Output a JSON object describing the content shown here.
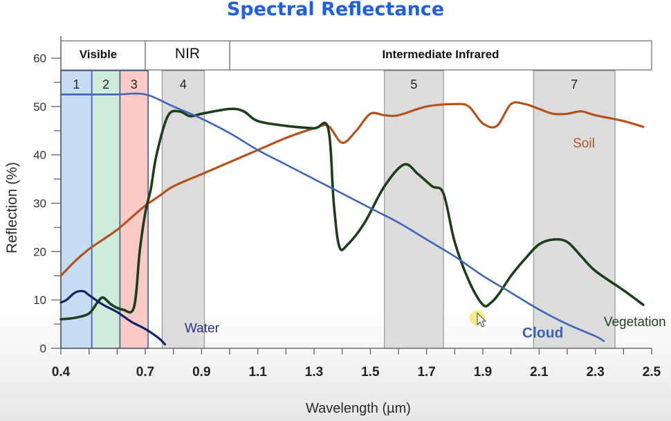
{
  "chart_data": {
    "type": "line",
    "title": "Spectral Reflectance",
    "xlabel": "Wavelength (µm)",
    "ylabel": "Reflection (%)",
    "xlim": [
      0.4,
      2.5
    ],
    "ylim": [
      0,
      60
    ],
    "x_ticks": [
      "0.4",
      "0.7",
      "0.9",
      "1.1",
      "1.3",
      "1.5",
      "1.7",
      "1.9",
      "2.1",
      "2.3",
      "2.5"
    ],
    "y_ticks": [
      "0",
      "10",
      "20",
      "30",
      "40",
      "50",
      "60"
    ],
    "regions": [
      {
        "label": "Visible",
        "x0": 0.4,
        "x1": 0.7
      },
      {
        "label": "NIR",
        "x0": 0.7,
        "x1": 1.0
      },
      {
        "label": "Intermediate Infrared",
        "x0": 1.0,
        "x1": 2.5
      }
    ],
    "bands": [
      {
        "label": "1",
        "x0": 0.4,
        "x1": 0.51,
        "color": "#c6dcf2"
      },
      {
        "label": "2",
        "x0": 0.51,
        "x1": 0.61,
        "color": "#cfebdc"
      },
      {
        "label": "3",
        "x0": 0.61,
        "x1": 0.71,
        "color": "#f9cac6"
      },
      {
        "label": "4",
        "x0": 0.76,
        "x1": 0.91,
        "color": "#dcdcdc"
      },
      {
        "label": "5",
        "x0": 1.55,
        "x1": 1.76,
        "color": "#dcdcdc"
      },
      {
        "label": "7",
        "x0": 2.08,
        "x1": 2.37,
        "color": "#dcdcdc"
      }
    ],
    "series": [
      {
        "name": "Soil",
        "color": "#b5521c",
        "x": [
          0.4,
          0.45,
          0.5,
          0.55,
          0.6,
          0.65,
          0.7,
          0.75,
          0.8,
          0.9,
          1.0,
          1.1,
          1.2,
          1.3,
          1.35,
          1.4,
          1.45,
          1.5,
          1.55,
          1.6,
          1.7,
          1.8,
          1.85,
          1.9,
          1.95,
          2.0,
          2.05,
          2.1,
          2.15,
          2.2,
          2.25,
          2.3,
          2.4,
          2.47
        ],
        "y": [
          15,
          18,
          20.5,
          22.5,
          24.5,
          27,
          29.5,
          31.5,
          33.5,
          36,
          38.5,
          41,
          43.5,
          45.5,
          46,
          42.5,
          45,
          48.5,
          48.2,
          48.2,
          50,
          50.5,
          50,
          46.5,
          46,
          50.5,
          50.5,
          49.5,
          48.5,
          48.5,
          49,
          48.2,
          47,
          45.8
        ]
      },
      {
        "name": "Vegetation",
        "color": "#1a3f1a",
        "x": [
          0.4,
          0.45,
          0.5,
          0.53,
          0.55,
          0.58,
          0.62,
          0.66,
          0.68,
          0.7,
          0.72,
          0.74,
          0.78,
          0.82,
          0.86,
          0.9,
          1.0,
          1.05,
          1.1,
          1.2,
          1.3,
          1.35,
          1.37,
          1.39,
          1.42,
          1.48,
          1.55,
          1.62,
          1.67,
          1.72,
          1.76,
          1.8,
          1.85,
          1.9,
          1.93,
          1.96,
          2.0,
          2.05,
          2.1,
          2.15,
          2.2,
          2.25,
          2.3,
          2.4,
          2.47
        ],
        "y": [
          6,
          6.3,
          7.2,
          9.5,
          10.5,
          9,
          8,
          8.5,
          20,
          28,
          33,
          40,
          48,
          49,
          48,
          48.5,
          49.5,
          49,
          47,
          46,
          45.5,
          45.5,
          30,
          21,
          21.5,
          26,
          33.5,
          38,
          36,
          33.5,
          32,
          22,
          14,
          9,
          9.5,
          11.5,
          15,
          18.5,
          21.5,
          22.5,
          22,
          19,
          16,
          12,
          9
        ]
      },
      {
        "name": "Cloud",
        "color": "#3d64b8",
        "x": [
          0.4,
          0.5,
          0.6,
          0.7,
          0.8,
          0.9,
          1.0,
          1.1,
          1.2,
          1.3,
          1.4,
          1.5,
          1.6,
          1.7,
          1.8,
          1.9,
          2.0,
          2.1,
          2.2,
          2.3,
          2.33
        ],
        "y": [
          52.5,
          52.5,
          52.5,
          52.5,
          50,
          47.5,
          44.5,
          41,
          38,
          35,
          32,
          29,
          26,
          22.5,
          19,
          15,
          11.5,
          8,
          5,
          2.5,
          1.5
        ]
      },
      {
        "name": "Water",
        "color": "#13216d",
        "x": [
          0.4,
          0.42,
          0.45,
          0.48,
          0.5,
          0.55,
          0.6,
          0.65,
          0.7,
          0.75,
          0.77
        ],
        "y": [
          9.5,
          10,
          11.5,
          11.8,
          11,
          9,
          7.5,
          5.5,
          4,
          2,
          0.8
        ]
      }
    ],
    "annotations": [
      {
        "text": "Soil",
        "x": 2.22,
        "y": 41.5,
        "color": "#b5521c"
      },
      {
        "text": "Vegetation",
        "x": 2.33,
        "y": 4.6,
        "color": "#1a3f1a"
      },
      {
        "text": "Cloud",
        "x": 2.04,
        "y": 2.2,
        "color": "#3d64b8"
      },
      {
        "text": "Water",
        "x": 0.84,
        "y": 3.3,
        "color": "#2b2f8a"
      }
    ]
  }
}
